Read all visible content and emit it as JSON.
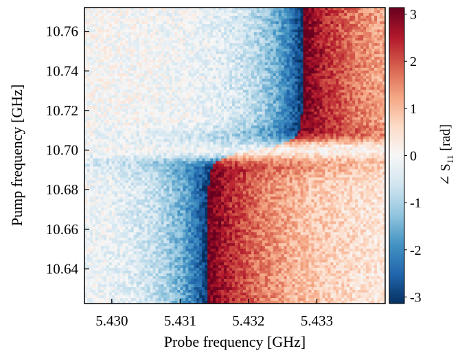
{
  "chart_data": {
    "type": "heatmap",
    "title": "",
    "xlabel": "Probe frequency [GHz]",
    "ylabel": "Pump frequency [GHz]",
    "xlim": [
      5.4296,
      5.434
    ],
    "ylim": [
      10.6225,
      10.772
    ],
    "x_ticks": [
      "5.430",
      "5.431",
      "5.432",
      "5.433"
    ],
    "x_tick_values": [
      5.43,
      5.431,
      5.432,
      5.433
    ],
    "y_ticks": [
      "10.64",
      "10.66",
      "10.68",
      "10.70",
      "10.72",
      "10.74",
      "10.76"
    ],
    "y_tick_values": [
      10.64,
      10.66,
      10.68,
      10.7,
      10.72,
      10.74,
      10.76
    ],
    "colorbar": {
      "label": "∠ S",
      "label_sub": "11",
      "label_unit": "[rad]",
      "range": [
        -3.14,
        3.14
      ],
      "ticks": [
        "3",
        "2",
        "1",
        "0",
        "-1",
        "-2",
        "-3"
      ],
      "tick_values": [
        3,
        2,
        1,
        0,
        -1,
        -2,
        -3
      ],
      "colormap": "RdBu_r",
      "colors": [
        "#053061",
        "#2166ac",
        "#4393c3",
        "#92c5de",
        "#d1e5f0",
        "#f7f7f7",
        "#fddbc7",
        "#f4a582",
        "#d6604d",
        "#b2182b",
        "#67001f"
      ]
    },
    "features": {
      "phase_jump_center_probe_ghz": 5.4321,
      "anticrossing_pump_ghz": 10.7,
      "noise": true
    }
  }
}
